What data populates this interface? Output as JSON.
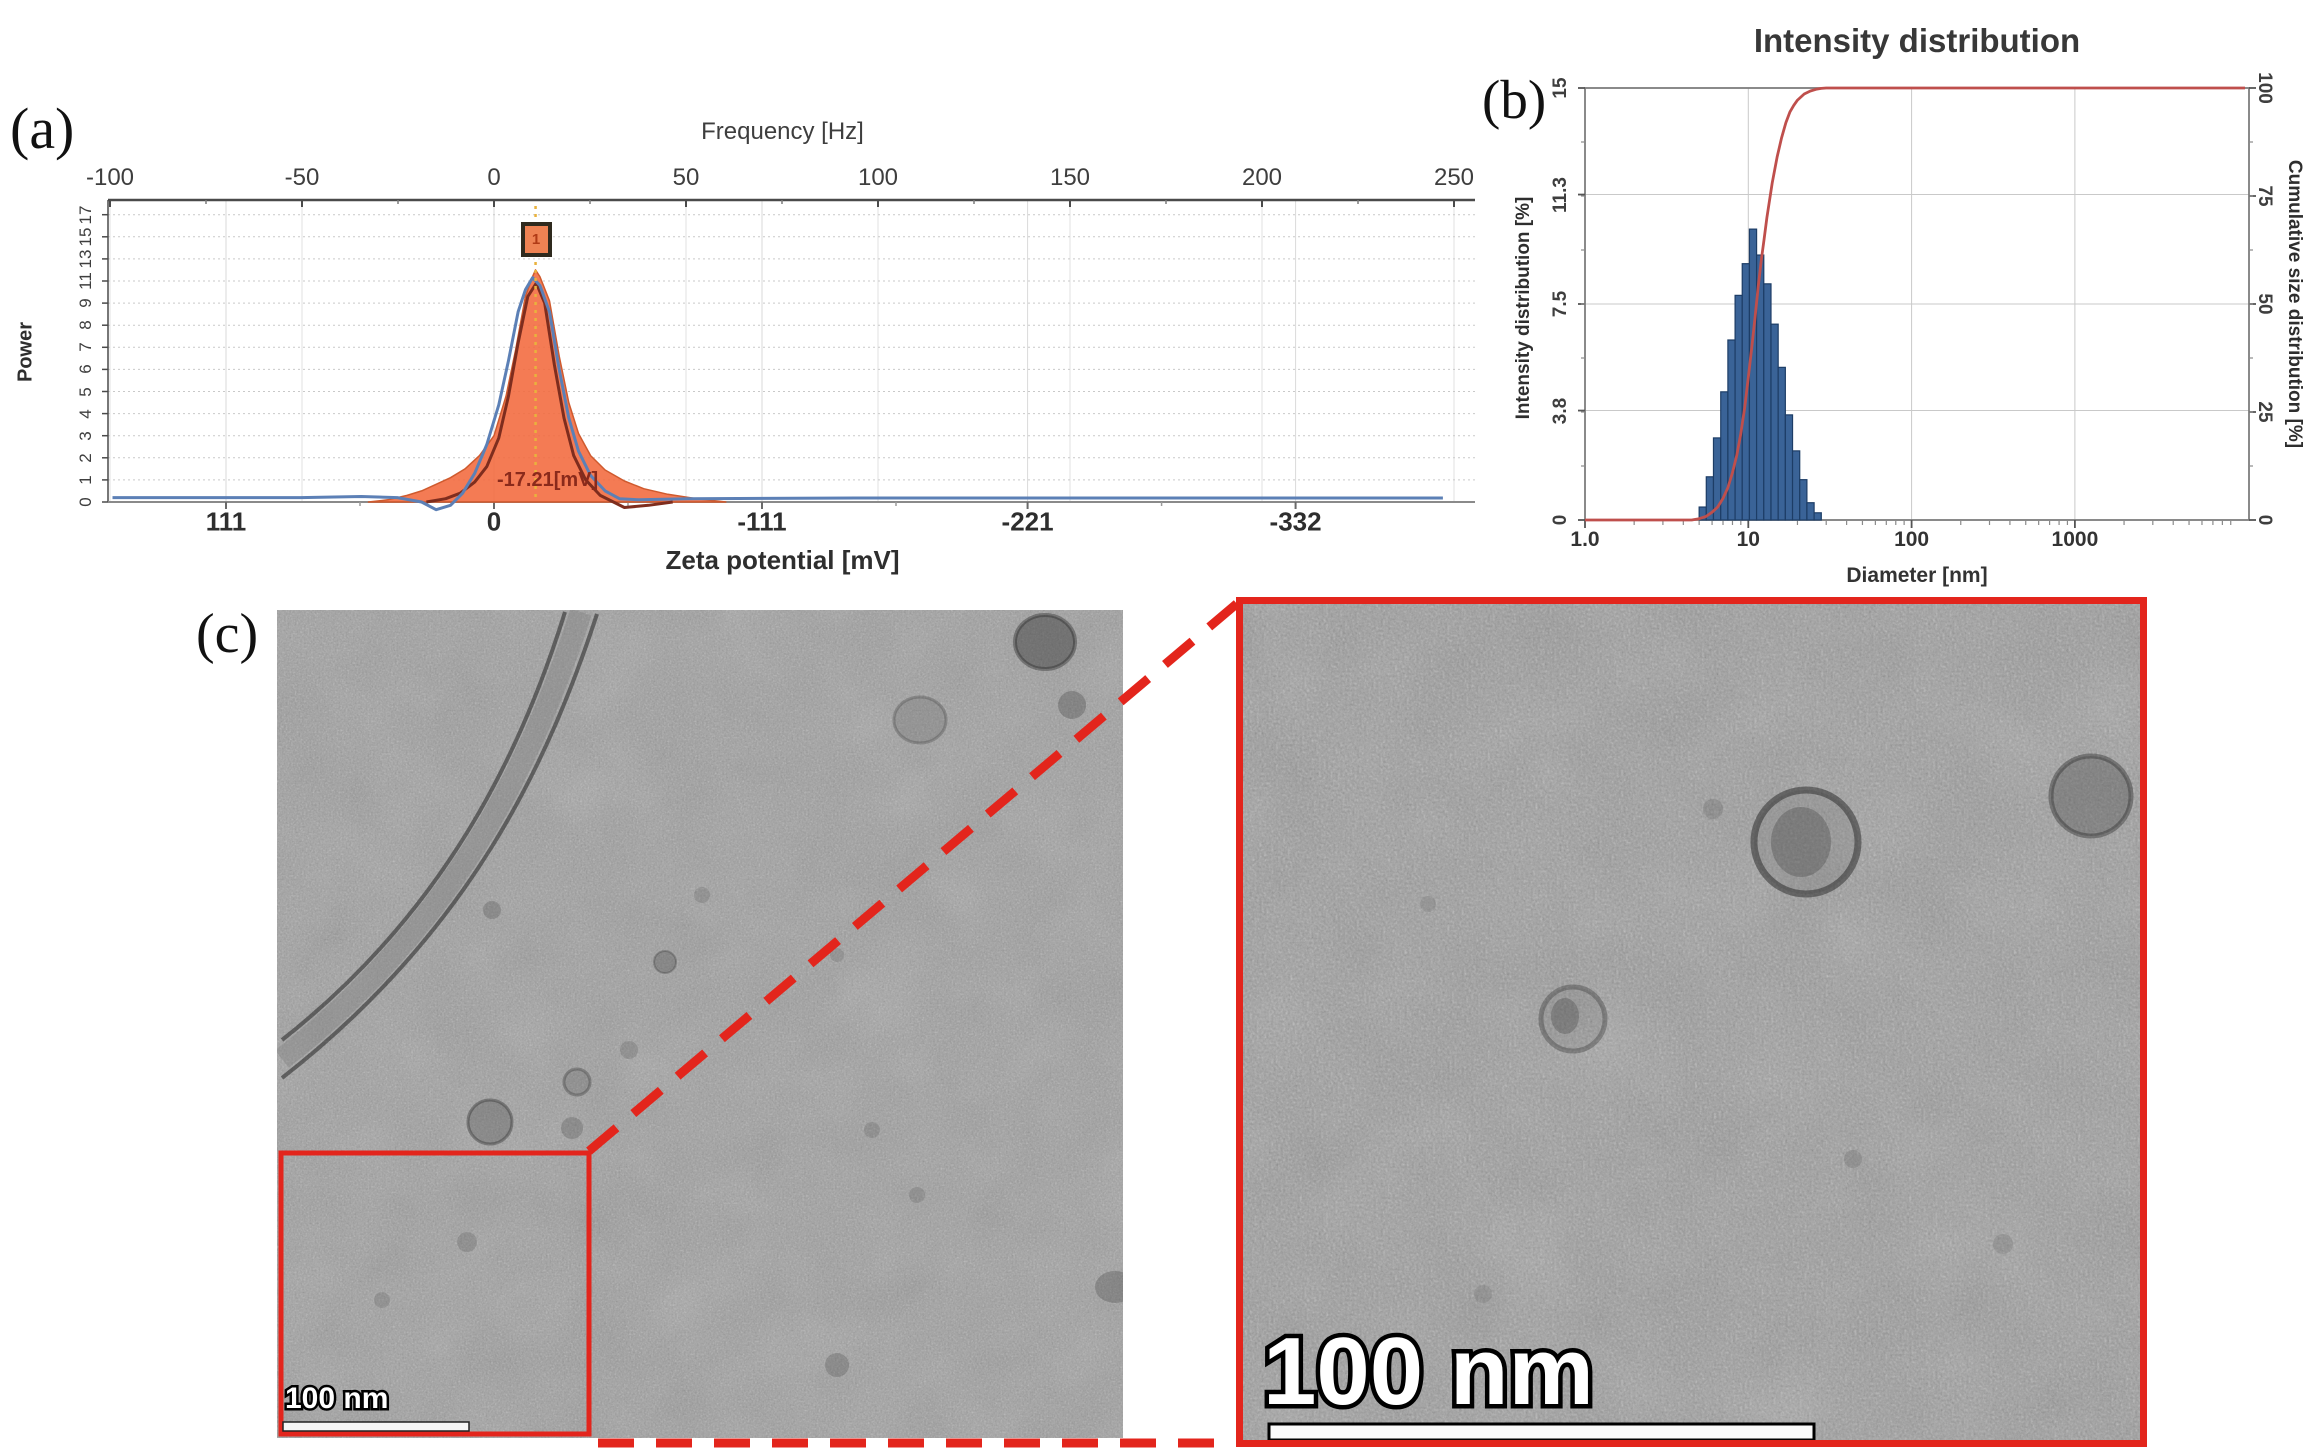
{
  "colors": {
    "accent_red": "#e3251c",
    "histogram_blue": "#3a6397",
    "histogram_blue_edge": "#1d3d66",
    "cumulative_red": "#bf4f4c",
    "zeta_fill_orange": "#f2693c",
    "zeta_outline_maroon": "#7e2d1e",
    "zeta_blue": "#5c80b6",
    "marker_line_yellow": "#e9b23d"
  },
  "figure": {
    "panel_a_label": "(a)",
    "panel_b_label": "(b)",
    "panel_c_label": "(c)"
  },
  "chart_data": [
    {
      "type": "area",
      "name": "zeta-potential-power-spectrum",
      "top_axis": {
        "label": "Frequency [Hz]",
        "ticks": [
          -100,
          -50,
          0,
          50,
          100,
          150,
          200,
          250
        ]
      },
      "bottom_axis": {
        "label": "Zeta potential [mV]",
        "ticks": [
          111,
          0,
          -111,
          -221,
          -332
        ]
      },
      "left_axis": {
        "label": "Power",
        "ticks": [
          0,
          1,
          2,
          3,
          4,
          5,
          6,
          7,
          8,
          9,
          11,
          13,
          15,
          17
        ]
      },
      "peak": {
        "zeta_mV": -17.21,
        "annotation": "-17.21[mV]",
        "marker_label": "1"
      },
      "series": [
        {
          "name": "fitted distribution filled",
          "color_key": "zeta_fill_orange",
          "points_mV_power": [
            [
              52,
              0
            ],
            [
              44,
              0.1
            ],
            [
              36,
              0.3
            ],
            [
              30,
              0.5
            ],
            [
              24,
              0.8
            ],
            [
              18,
              1.1
            ],
            [
              12,
              1.5
            ],
            [
              6,
              2.1
            ],
            [
              0,
              3.0
            ],
            [
              -5,
              4.8
            ],
            [
              -9,
              6.9
            ],
            [
              -13,
              9.6
            ],
            [
              -16,
              11.4
            ],
            [
              -17.2,
              12.0
            ],
            [
              -19,
              11.4
            ],
            [
              -23,
              9.2
            ],
            [
              -27,
              6.6
            ],
            [
              -31,
              4.5
            ],
            [
              -35,
              3.1
            ],
            [
              -40,
              2.1
            ],
            [
              -46,
              1.45
            ],
            [
              -54,
              0.95
            ],
            [
              -62,
              0.6
            ],
            [
              -72,
              0.35
            ],
            [
              -84,
              0.15
            ],
            [
              -96,
              0
            ]
          ]
        },
        {
          "name": "fitted peak outline",
          "color_key": "zeta_outline_maroon",
          "points_mV_power": [
            [
              28,
              0
            ],
            [
              20,
              0.15
            ],
            [
              14,
              0.4
            ],
            [
              8,
              0.9
            ],
            [
              3,
              1.6
            ],
            [
              -2,
              2.9
            ],
            [
              -6,
              4.8
            ],
            [
              -10,
              7.2
            ],
            [
              -14,
              9.6
            ],
            [
              -17.5,
              10.8
            ],
            [
              -21,
              9.0
            ],
            [
              -25,
              6.2
            ],
            [
              -29,
              3.8
            ],
            [
              -33,
              2.1
            ],
            [
              -38,
              1.0
            ],
            [
              -44,
              0.3
            ],
            [
              -54,
              -0.25
            ],
            [
              -64,
              -0.15
            ],
            [
              -74,
              0
            ]
          ]
        },
        {
          "name": "raw power spectrum",
          "color_key": "zeta_blue",
          "points_mV_power": [
            [
              158,
              0.2
            ],
            [
              80,
              0.2
            ],
            [
              55,
              0.25
            ],
            [
              40,
              0.2
            ],
            [
              30,
              0.0
            ],
            [
              24,
              -0.35
            ],
            [
              18,
              -0.15
            ],
            [
              13,
              0.4
            ],
            [
              8,
              1.3
            ],
            [
              3,
              2.6
            ],
            [
              -2,
              4.4
            ],
            [
              -6,
              6.4
            ],
            [
              -10,
              8.6
            ],
            [
              -13,
              10.2
            ],
            [
              -16,
              11.3
            ],
            [
              -19,
              10.6
            ],
            [
              -23,
              8.6
            ],
            [
              -27,
              6.0
            ],
            [
              -31,
              3.8
            ],
            [
              -35,
              2.3
            ],
            [
              -40,
              1.2
            ],
            [
              -46,
              0.5
            ],
            [
              -52,
              0.15
            ],
            [
              -60,
              0.1
            ],
            [
              -80,
              0.15
            ],
            [
              -150,
              0.18
            ],
            [
              -393,
              0.18
            ]
          ]
        }
      ]
    },
    {
      "type": "bar",
      "name": "dls-size-distribution",
      "title": "Intensity distribution",
      "xlabel": "Diameter [nm]",
      "x_log_range": [
        1,
        11650
      ],
      "x_ticks": [
        {
          "label": "1.0",
          "value": 1
        },
        {
          "label": "10",
          "value": 10
        },
        {
          "label": "100",
          "value": 100
        },
        {
          "label": "1000",
          "value": 1000
        }
      ],
      "left_axis": {
        "label": "Intensity distribution [%]",
        "ticks": [
          15,
          11.3,
          7.5,
          3.8,
          0
        ],
        "range": [
          0,
          15
        ]
      },
      "right_axis": {
        "label": "Cumulative size distribution [%]",
        "ticks": [
          100,
          75,
          50,
          25,
          0
        ],
        "range": [
          0,
          100
        ]
      },
      "histogram": {
        "bin_edges_nm": [
          5.0,
          5.53,
          6.12,
          6.78,
          7.5,
          8.3,
          9.18,
          10.16,
          11.24,
          12.44,
          13.77,
          15.24,
          16.86,
          18.66,
          20.65,
          22.85,
          25.29,
          27.99
        ],
        "heights_percent": [
          0.45,
          1.5,
          2.85,
          4.45,
          6.25,
          7.8,
          8.9,
          10.1,
          9.2,
          8.2,
          6.8,
          5.3,
          3.65,
          2.4,
          1.4,
          0.6,
          0.25
        ]
      },
      "cumulative_percent": [
        [
          1,
          0
        ],
        [
          4.5,
          0
        ],
        [
          5,
          0.3
        ],
        [
          5.5,
          0.8
        ],
        [
          6,
          1.8
        ],
        [
          6.5,
          3
        ],
        [
          7,
          5
        ],
        [
          7.5,
          7.5
        ],
        [
          8,
          11
        ],
        [
          8.5,
          15
        ],
        [
          9,
          20
        ],
        [
          9.5,
          26
        ],
        [
          10,
          33
        ],
        [
          10.5,
          40
        ],
        [
          11,
          47
        ],
        [
          11.5,
          54
        ],
        [
          12,
          60
        ],
        [
          12.5,
          65
        ],
        [
          13,
          70
        ],
        [
          14,
          78
        ],
        [
          15,
          84
        ],
        [
          16,
          88.5
        ],
        [
          17,
          92
        ],
        [
          18,
          94.5
        ],
        [
          19,
          96
        ],
        [
          20,
          97.2
        ],
        [
          22,
          98.6
        ],
        [
          24,
          99.3
        ],
        [
          26,
          99.7
        ],
        [
          28,
          99.9
        ],
        [
          30,
          100
        ],
        [
          11000,
          100
        ]
      ]
    }
  ],
  "tem": {
    "left_scalebar_label": "100 nm",
    "right_scalebar_label": "100 nm"
  }
}
